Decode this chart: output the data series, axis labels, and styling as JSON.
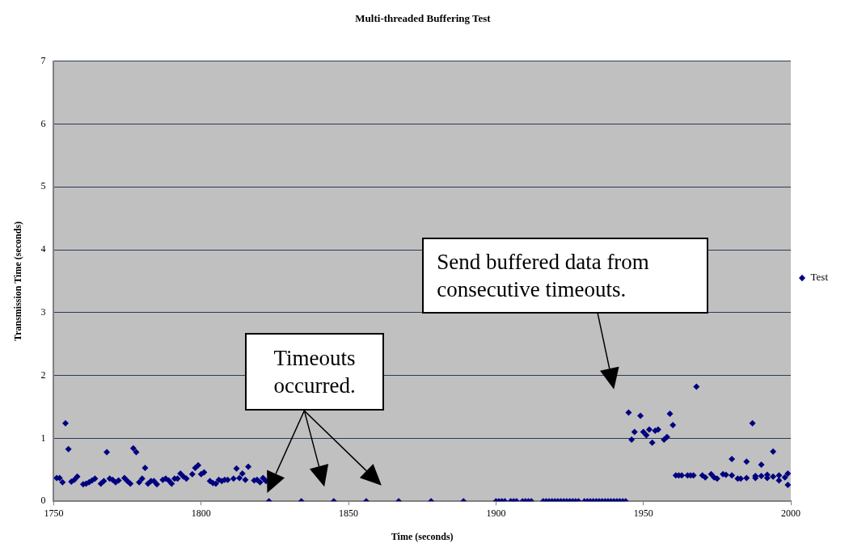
{
  "chart_data": {
    "type": "scatter",
    "title": "Multi-threaded Buffering Test",
    "xlabel": "Time (seconds)",
    "ylabel": "Transmission Time (seconds)",
    "xlim": [
      1750,
      2000
    ],
    "xticks": [
      1750,
      1800,
      1850,
      1900,
      1950,
      2000
    ],
    "ylim": [
      0,
      7
    ],
    "yticks": [
      0,
      1,
      2,
      3,
      4,
      5,
      6,
      7
    ],
    "grid": "y",
    "legend": "right",
    "marker": "diamond",
    "series": [
      {
        "name": "Test",
        "color": "#000080",
        "x": [
          1751,
          1752,
          1753,
          1754,
          1755,
          1756,
          1757,
          1758,
          1760,
          1761,
          1762,
          1763,
          1764,
          1766,
          1767,
          1768,
          1769,
          1770,
          1771,
          1772,
          1774,
          1775,
          1776,
          1777,
          1778,
          1779,
          1780,
          1781,
          1782,
          1783,
          1784,
          1785,
          1787,
          1788,
          1789,
          1790,
          1791,
          1792,
          1793,
          1794,
          1795,
          1797,
          1798,
          1799,
          1800,
          1801,
          1803,
          1804,
          1805,
          1806,
          1807,
          1808,
          1809,
          1811,
          1812,
          1813,
          1814,
          1815,
          1816,
          1818,
          1819,
          1820,
          1821,
          1822,
          1823,
          1834,
          1845,
          1856,
          1867,
          1878,
          1889,
          1900,
          1901,
          1902,
          1903,
          1905,
          1906,
          1907,
          1909,
          1910,
          1911,
          1912,
          1916,
          1917,
          1918,
          1919,
          1920,
          1921,
          1922,
          1923,
          1924,
          1925,
          1926,
          1927,
          1928,
          1930,
          1931,
          1932,
          1933,
          1934,
          1935,
          1936,
          1937,
          1938,
          1939,
          1940,
          1941,
          1942,
          1943,
          1944,
          1945,
          1946,
          1947,
          1949,
          1950,
          1951,
          1952,
          1953,
          1954,
          1955,
          1957,
          1958,
          1959,
          1960,
          1961,
          1962,
          1963,
          1965,
          1966,
          1967,
          1968,
          1970,
          1971,
          1973,
          1974,
          1975,
          1977,
          1978,
          1980,
          1980,
          1982,
          1983,
          1985,
          1985,
          1987,
          1988,
          1988,
          1990,
          1990,
          1992,
          1992,
          1994,
          1994,
          1996,
          1996,
          1998,
          1999,
          1999
        ],
        "values": [
          0.37,
          0.37,
          0.3,
          1.24,
          0.83,
          0.31,
          0.34,
          0.39,
          0.27,
          0.28,
          0.3,
          0.33,
          0.36,
          0.28,
          0.32,
          0.78,
          0.36,
          0.34,
          0.3,
          0.33,
          0.37,
          0.32,
          0.28,
          0.84,
          0.78,
          0.3,
          0.36,
          0.53,
          0.28,
          0.32,
          0.32,
          0.27,
          0.34,
          0.36,
          0.33,
          0.28,
          0.36,
          0.36,
          0.44,
          0.39,
          0.36,
          0.43,
          0.53,
          0.57,
          0.43,
          0.46,
          0.32,
          0.29,
          0.28,
          0.34,
          0.32,
          0.34,
          0.34,
          0.36,
          0.52,
          0.37,
          0.44,
          0.34,
          0.55,
          0.33,
          0.34,
          0.3,
          0.37,
          0.32,
          0,
          0,
          0,
          0,
          0,
          0,
          0,
          0,
          0,
          0,
          0,
          0,
          0,
          0,
          0,
          0,
          0,
          0,
          0,
          0,
          0,
          0,
          0,
          0,
          0,
          0,
          0,
          0,
          0,
          0,
          0,
          0,
          0,
          0,
          0,
          0,
          0,
          0,
          0,
          0,
          0,
          0,
          0,
          0,
          0,
          0,
          1.41,
          0.98,
          1.1,
          1.36,
          1.1,
          1.05,
          1.14,
          0.93,
          1.12,
          1.14,
          0.98,
          1.02,
          1.39,
          1.21,
          0.41,
          0.41,
          0.41,
          0.41,
          0.41,
          0.41,
          1.82,
          0.41,
          0.38,
          0.43,
          0.38,
          0.36,
          0.43,
          0.42,
          0.67,
          0.41,
          0.36,
          0.36,
          0.63,
          0.37,
          1.24,
          0.4,
          0.37,
          0.58,
          0.4,
          0.42,
          0.37,
          0.79,
          0.39,
          0.41,
          0.33,
          0.38,
          0.44,
          0.26
        ]
      }
    ],
    "annotations": [
      "Timeouts occurred.",
      "Send buffered data from consecutive timeouts."
    ]
  }
}
